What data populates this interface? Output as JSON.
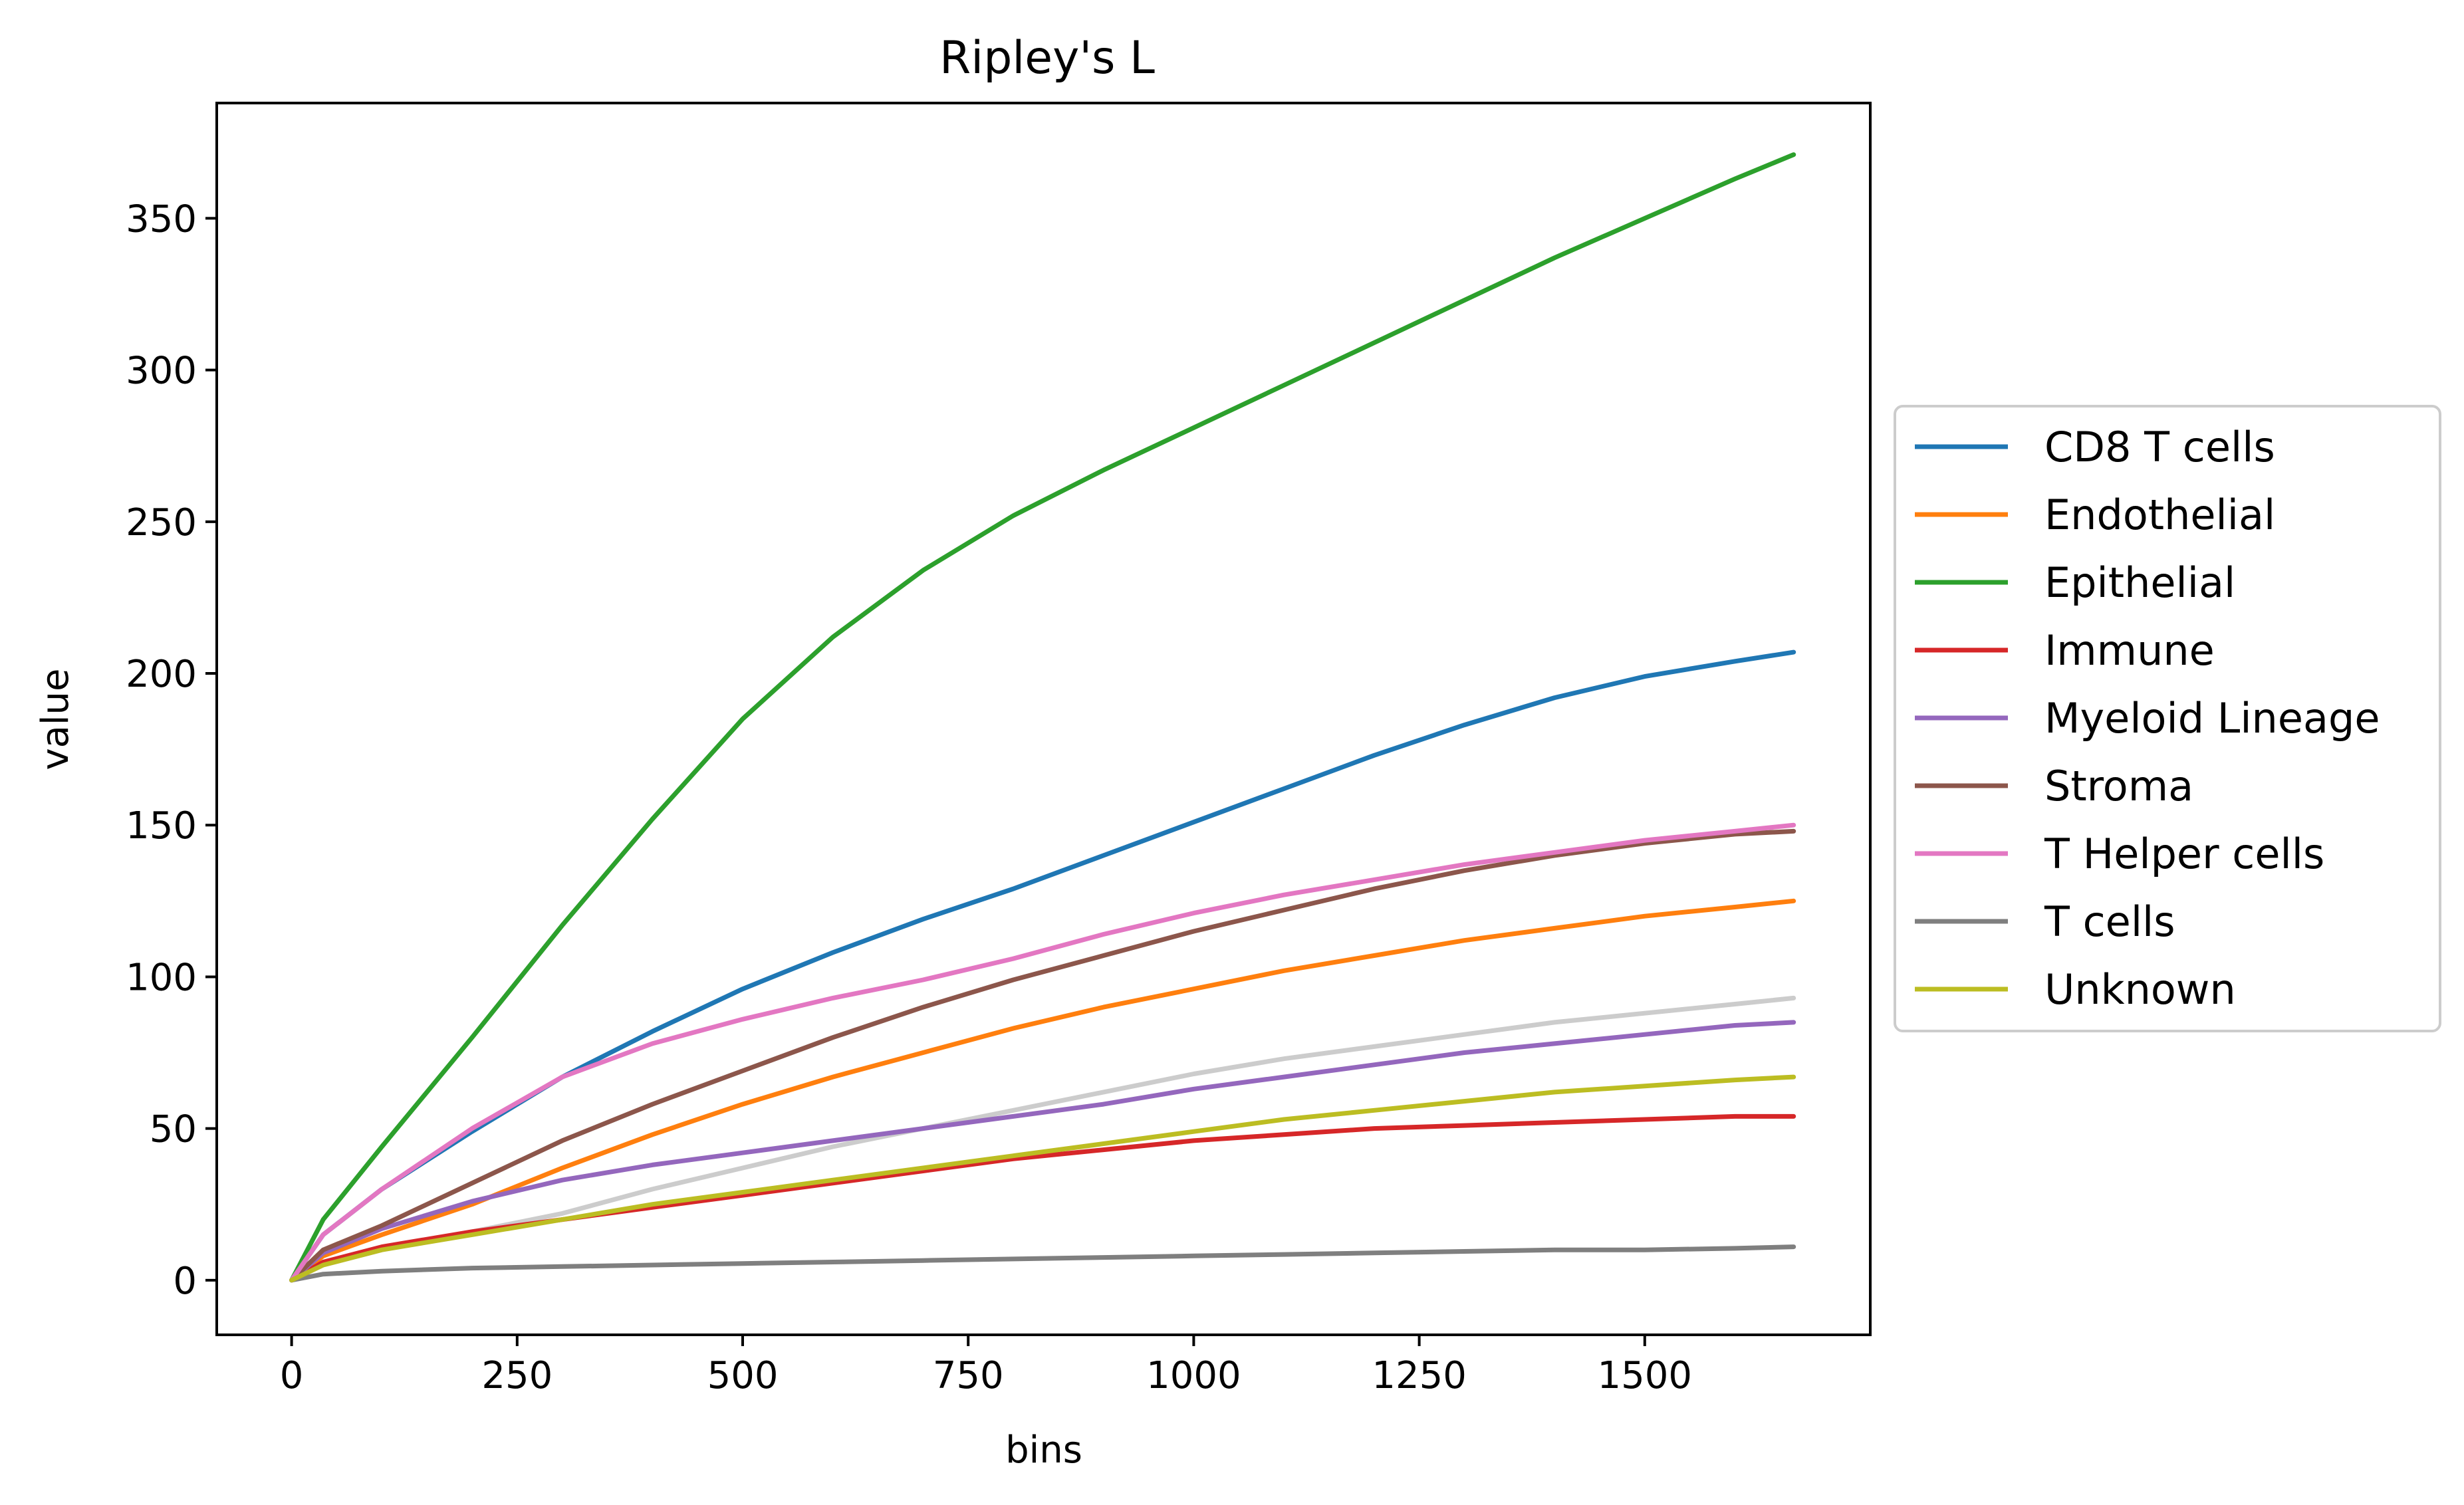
{
  "chart_data": {
    "type": "line",
    "title": "Ripley's L",
    "xlabel": "bins",
    "ylabel": "value",
    "xlim": [
      -83,
      1750
    ],
    "ylim": [
      -18,
      388
    ],
    "xticks": [
      0,
      250,
      500,
      750,
      1000,
      1250,
      1500
    ],
    "yticks": [
      0,
      50,
      100,
      150,
      200,
      250,
      300,
      350
    ],
    "grid": false,
    "legend_position": "right, outside plot",
    "x": [
      0,
      35,
      100,
      200,
      300,
      400,
      500,
      600,
      700,
      800,
      900,
      1000,
      1100,
      1200,
      1300,
      1400,
      1500,
      1600,
      1665
    ],
    "series": [
      {
        "name": "CD8 T cells",
        "color": "#1f77b4",
        "values": [
          0,
          15,
          30,
          49,
          67,
          82,
          96,
          108,
          119,
          129,
          140,
          151,
          162,
          173,
          183,
          192,
          199,
          204,
          207
        ]
      },
      {
        "name": "Endothelial",
        "color": "#ff7f0e",
        "values": [
          0,
          8,
          15,
          25,
          37,
          48,
          58,
          67,
          75,
          83,
          90,
          96,
          102,
          107,
          112,
          116,
          120,
          123,
          125
        ]
      },
      {
        "name": "Epithelial",
        "color": "#2ca02c",
        "values": [
          0,
          20,
          44,
          80,
          117,
          152,
          185,
          212,
          234,
          252,
          267,
          281,
          295,
          309,
          323,
          337,
          350,
          363,
          371
        ]
      },
      {
        "name": "Immune",
        "color": "#d62728",
        "values": [
          0,
          6,
          11,
          16,
          20,
          24,
          28,
          32,
          36,
          40,
          43,
          46,
          48,
          50,
          51,
          52,
          53,
          54,
          54
        ]
      },
      {
        "name": "Myeloid Lineage",
        "color": "#9467bd",
        "values": [
          0,
          9,
          17,
          26,
          33,
          38,
          42,
          46,
          50,
          54,
          58,
          63,
          67,
          71,
          75,
          78,
          81,
          84,
          85
        ]
      },
      {
        "name": "Stroma",
        "color": "#8c564b",
        "values": [
          0,
          10,
          18,
          32,
          46,
          58,
          69,
          80,
          90,
          99,
          107,
          115,
          122,
          129,
          135,
          140,
          144,
          147,
          148
        ]
      },
      {
        "name": "T Helper cells",
        "color": "#e377c2",
        "values": [
          0,
          15,
          30,
          50,
          67,
          78,
          86,
          93,
          99,
          106,
          114,
          121,
          127,
          132,
          137,
          141,
          145,
          148,
          150
        ]
      },
      {
        "name": "T cells",
        "color": "#7f7f7f",
        "values": [
          0,
          2,
          3,
          4,
          4.5,
          5,
          5.5,
          6,
          6.5,
          7,
          7.5,
          8,
          8.5,
          9,
          9.5,
          10,
          10,
          10.5,
          11
        ]
      },
      {
        "name": "Unknown",
        "color": "#bcbd22",
        "values": [
          0,
          5,
          10,
          15,
          20,
          25,
          29,
          33,
          37,
          41,
          45,
          49,
          53,
          56,
          59,
          62,
          64,
          66,
          67
        ]
      }
    ],
    "faint_series": [
      {
        "color": "#cccccc",
        "values": [
          0,
          5,
          10,
          16,
          22,
          30,
          37,
          44,
          50,
          56,
          62,
          68,
          73,
          77,
          81,
          85,
          88,
          91,
          93
        ]
      }
    ]
  }
}
